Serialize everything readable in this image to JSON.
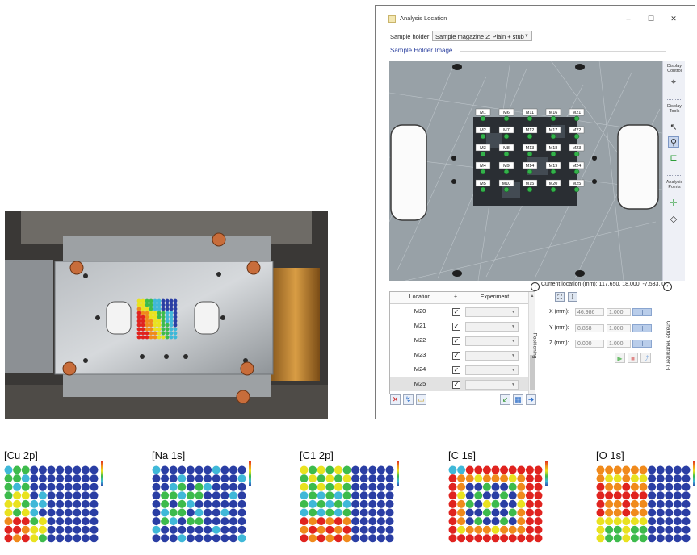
{
  "window": {
    "title": "Analysis Location",
    "controls": {
      "minimize": "–",
      "maximize": "☐",
      "close": "✕"
    },
    "sample_holder_label": "Sample holder:",
    "sample_holder_value": "Sample magazine 2: Plain + stub",
    "section_title": "Sample Holder Image"
  },
  "side_tools": {
    "display_control": "Display Control",
    "display_tools": "Display Tools",
    "analysis_points": "Analysis Points"
  },
  "points": [
    "M1",
    "M6",
    "M11",
    "M16",
    "M21",
    "M2",
    "M7",
    "M12",
    "M17",
    "M22",
    "M3",
    "M8",
    "M13",
    "M18",
    "M23",
    "M4",
    "M9",
    "M14",
    "M19",
    "M24",
    "M5",
    "M10",
    "M15",
    "M20",
    "M25"
  ],
  "table": {
    "headers": {
      "location": "Location",
      "enabled": "±",
      "experiment": "Experiment"
    },
    "rows": [
      {
        "location": "M20",
        "checked": "✓"
      },
      {
        "location": "M21",
        "checked": "✓"
      },
      {
        "location": "M22",
        "checked": "✓"
      },
      {
        "location": "M23",
        "checked": "✓"
      },
      {
        "location": "M24",
        "checked": "✓"
      },
      {
        "location": "M25",
        "checked": "✓"
      }
    ]
  },
  "positioning": {
    "label": "Positioning",
    "charge_label": "Charge neutralizer (-)",
    "current_location": "Current location (mm): 117.650, 18.000, -7.533, 0°",
    "x_label": "X (mm):",
    "x_value": "46.986",
    "x_step": "1.000",
    "y_label": "Y (mm):",
    "y_value": "8.868",
    "y_step": "1.000",
    "z_label": "Z (mm):",
    "z_value": "0.000",
    "z_step": "1.000"
  },
  "maps": [
    {
      "label": "[Cu 2p]"
    },
    {
      "label": "[Na 1s]"
    },
    {
      "label": "[C1 2p]"
    },
    {
      "label": "[C 1s]"
    },
    {
      "label": "[O 1s]"
    }
  ],
  "colors": {
    "map_blue": "#2a3ea4",
    "map_cyan": "#3fb8d8",
    "map_green": "#3dbb4c",
    "map_yellow": "#e9e21f",
    "map_orange": "#f08a1b",
    "map_red": "#e0231f",
    "heading_blue": "#2a3f9e"
  }
}
